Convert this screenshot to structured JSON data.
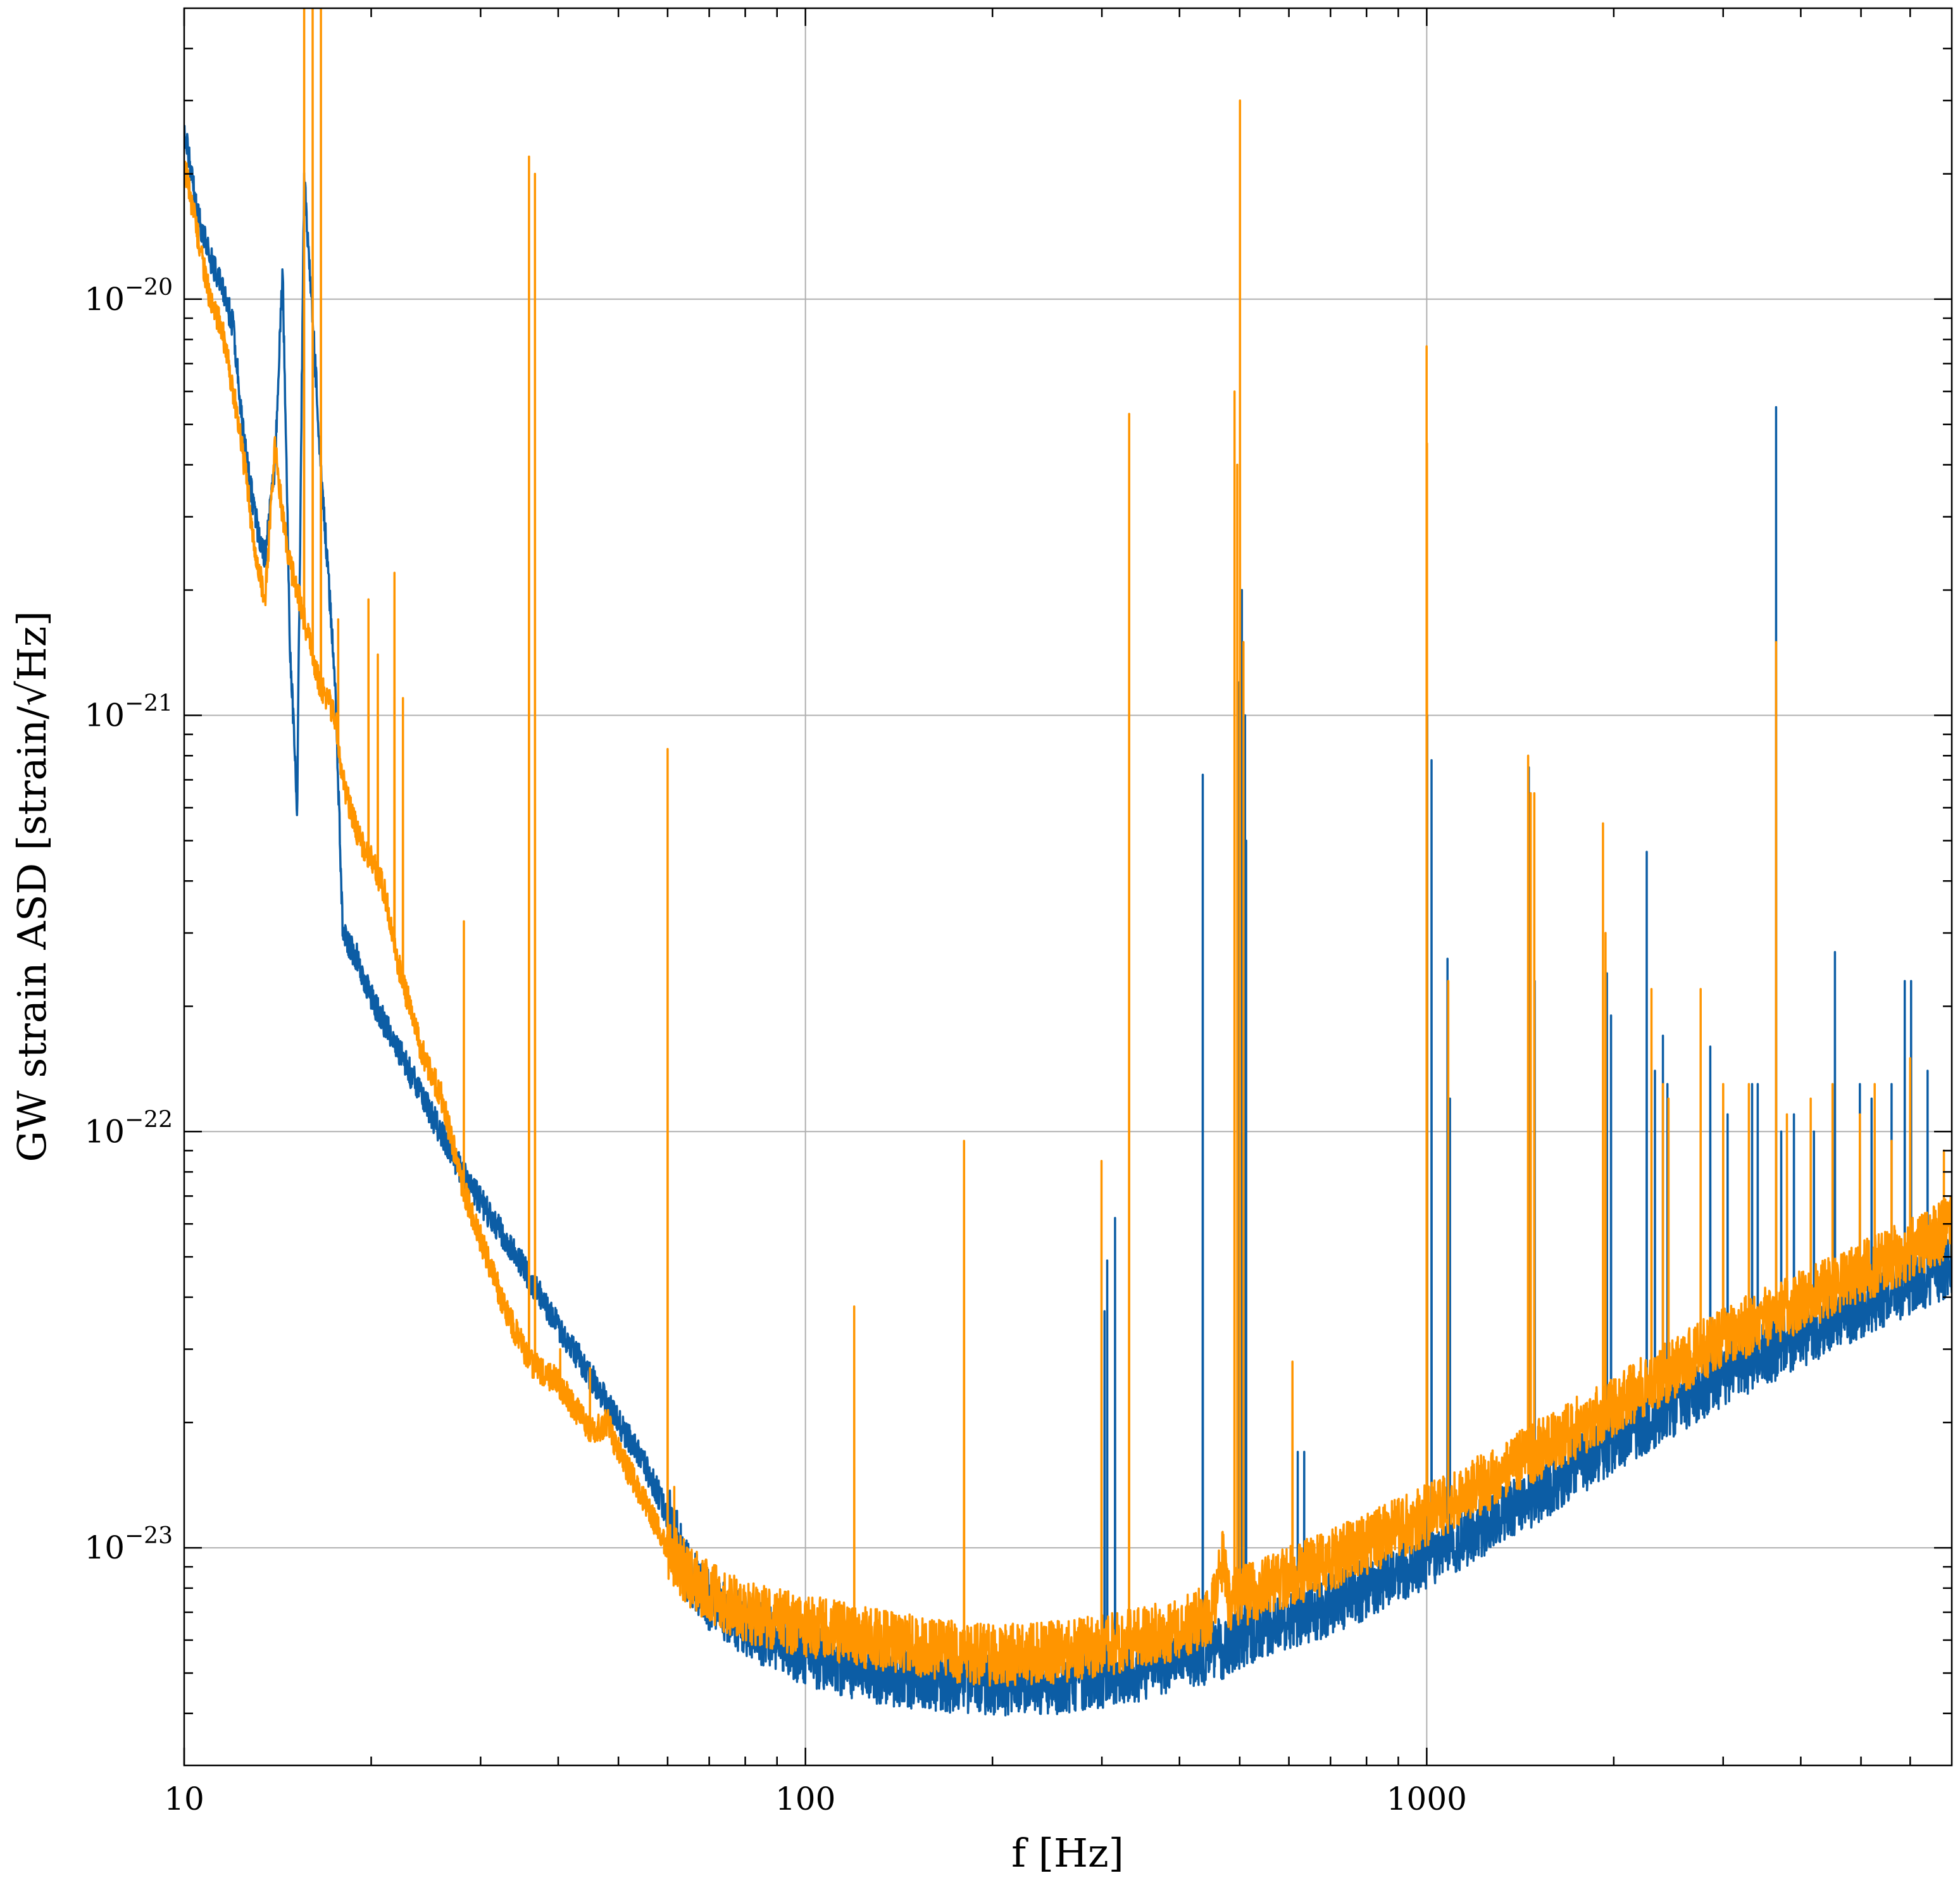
{
  "chart_data": {
    "type": "line",
    "xlabel": "f [Hz]",
    "ylabel": "GW strain ASD [strain/√Hz]",
    "x_scale": "log",
    "y_scale": "log",
    "xlim": [
      10,
      7000
    ],
    "ylim": [
      3e-24,
      5e-20
    ],
    "grid": true,
    "legend": "none",
    "x_ticks": [
      {
        "value": 10,
        "label": "10"
      },
      {
        "value": 100,
        "label": "100"
      },
      {
        "value": 1000,
        "label": "1000"
      }
    ],
    "y_ticks": [
      {
        "value": 1e-20,
        "base": "10",
        "exp": "−20"
      },
      {
        "value": 1e-21,
        "base": "10",
        "exp": "−21"
      },
      {
        "value": 1e-22,
        "base": "10",
        "exp": "−22"
      },
      {
        "value": 1e-23,
        "base": "10",
        "exp": "−23"
      }
    ],
    "series": [
      {
        "color": "#0c5da5",
        "baseline": [
          [
            10,
            2.6e-20
          ],
          [
            10.5,
            1.6e-20
          ],
          [
            11,
            1.25e-20
          ],
          [
            11.5,
            1.1e-20
          ],
          [
            12,
            8.5e-21
          ],
          [
            12.5,
            4.5e-21
          ],
          [
            13,
            3e-21
          ],
          [
            13.5,
            2.4e-21
          ],
          [
            14,
            4e-21
          ],
          [
            14.4,
            1.2e-20
          ],
          [
            14.8,
            1.5e-21
          ],
          [
            15.2,
            6e-22
          ],
          [
            15.6,
            2e-20
          ],
          [
            16.6,
            4e-21
          ],
          [
            17.5,
            1.2e-21
          ],
          [
            18,
            3e-22
          ],
          [
            19,
            2.6e-22
          ],
          [
            20,
            2.1e-22
          ],
          [
            22,
            1.6e-22
          ],
          [
            25,
            1.1e-22
          ],
          [
            28,
            8e-23
          ],
          [
            30,
            6.8e-23
          ],
          [
            35,
            4.8e-23
          ],
          [
            40,
            3.4e-23
          ],
          [
            45,
            2.6e-23
          ],
          [
            50,
            2e-23
          ],
          [
            55,
            1.6e-23
          ],
          [
            60,
            1.2e-23
          ],
          [
            65,
            8.5e-24
          ],
          [
            70,
            7.5e-24
          ],
          [
            80,
            6.5e-24
          ],
          [
            100,
            5.5e-24
          ],
          [
            130,
            5e-24
          ],
          [
            160,
            4.8e-24
          ],
          [
            200,
            4.7e-24
          ],
          [
            250,
            4.7e-24
          ],
          [
            300,
            4.9e-24
          ],
          [
            350,
            5.1e-24
          ],
          [
            400,
            5.4e-24
          ],
          [
            450,
            5.6e-24
          ],
          [
            500,
            6e-24
          ],
          [
            600,
            6.6e-24
          ],
          [
            700,
            7.3e-24
          ],
          [
            800,
            8e-24
          ],
          [
            1000,
            9.5e-24
          ],
          [
            1200,
            1.1e-23
          ],
          [
            1500,
            1.35e-23
          ],
          [
            2000,
            1.8e-23
          ],
          [
            2500,
            2.2e-23
          ],
          [
            3000,
            2.6e-23
          ],
          [
            4000,
            3.2e-23
          ],
          [
            5000,
            3.8e-23
          ],
          [
            6000,
            4.3e-23
          ],
          [
            7000,
            4.8e-23
          ]
        ],
        "lines": [
          [
            180,
            5.8e-24
          ],
          [
            303,
            3.7e-23
          ],
          [
            306,
            4.9e-23
          ],
          [
            315,
            6.2e-23
          ],
          [
            436,
            7.2e-22
          ],
          [
            499,
            1.2e-21
          ],
          [
            504,
            2e-21
          ],
          [
            510,
            1e-21
          ],
          [
            512,
            5e-22
          ],
          [
            620,
            1.7e-23
          ],
          [
            635,
            1.7e-23
          ],
          [
            1000,
            1.5e-21
          ],
          [
            1002,
            1e-21
          ],
          [
            1018,
            7.8e-22
          ],
          [
            1080,
            2.6e-22
          ],
          [
            1090,
            1.2e-22
          ],
          [
            1460,
            7.5e-22
          ],
          [
            1492,
            2.3e-22
          ],
          [
            1950,
            2.4e-22
          ],
          [
            1980,
            1.9e-22
          ],
          [
            2260,
            4.7e-22
          ],
          [
            2330,
            1.4e-22
          ],
          [
            2400,
            1.7e-22
          ],
          [
            2440,
            1.3e-22
          ],
          [
            2860,
            1.6e-22
          ],
          [
            3050,
            1.1e-22
          ],
          [
            3340,
            1.3e-22
          ],
          [
            3410,
            1.3e-22
          ],
          [
            3650,
            5.5e-21
          ],
          [
            3720,
            1e-22
          ],
          [
            3900,
            1.1e-22
          ],
          [
            4200,
            1e-22
          ],
          [
            4540,
            2.7e-22
          ],
          [
            4980,
            1.3e-22
          ],
          [
            5200,
            1.2e-22
          ],
          [
            5600,
            1.3e-22
          ],
          [
            5880,
            2.3e-22
          ],
          [
            6020,
            2.3e-22
          ],
          [
            6400,
            1.4e-22
          ]
        ]
      },
      {
        "color": "#ff9500",
        "baseline": [
          [
            10,
            2.1e-20
          ],
          [
            10.5,
            1.45e-20
          ],
          [
            11,
            1e-20
          ],
          [
            11.5,
            8.5e-21
          ],
          [
            12,
            6e-21
          ],
          [
            12.5,
            4e-21
          ],
          [
            13,
            2.5e-21
          ],
          [
            13.5,
            1.9e-21
          ],
          [
            14,
            4.5e-21
          ],
          [
            14.4,
            3e-21
          ],
          [
            14.8,
            2.3e-21
          ],
          [
            15.2,
            2e-21
          ],
          [
            16.5,
            1.2e-21
          ],
          [
            17.5,
            1e-21
          ],
          [
            18,
            7e-22
          ],
          [
            19,
            5.2e-22
          ],
          [
            20,
            4.5e-22
          ],
          [
            21,
            3.8e-22
          ],
          [
            22,
            2.6e-22
          ],
          [
            24,
            1.6e-22
          ],
          [
            26,
            1.2e-22
          ],
          [
            28,
            7.5e-23
          ],
          [
            30,
            5.5e-23
          ],
          [
            33,
            3.7e-23
          ],
          [
            36,
            2.8e-23
          ],
          [
            40,
            2.5e-23
          ],
          [
            45,
            1.9e-23
          ],
          [
            48,
            2e-23
          ],
          [
            50,
            1.7e-23
          ],
          [
            55,
            1.3e-23
          ],
          [
            60,
            1e-23
          ],
          [
            65,
            8.5e-24
          ],
          [
            70,
            7.8e-24
          ],
          [
            80,
            7e-24
          ],
          [
            100,
            6.5e-24
          ],
          [
            130,
            6e-24
          ],
          [
            160,
            5.7e-24
          ],
          [
            200,
            5.5e-24
          ],
          [
            250,
            5.6e-24
          ],
          [
            300,
            5.8e-24
          ],
          [
            350,
            6.1e-24
          ],
          [
            400,
            6.4e-24
          ],
          [
            450,
            7e-24
          ],
          [
            470,
            9.5e-24
          ],
          [
            480,
            7.5e-24
          ],
          [
            500,
            7.6e-24
          ],
          [
            600,
            8.5e-24
          ],
          [
            700,
            9.3e-24
          ],
          [
            800,
            1.02e-23
          ],
          [
            1000,
            1.2e-23
          ],
          [
            1200,
            1.4e-23
          ],
          [
            1500,
            1.7e-23
          ],
          [
            2000,
            2.2e-23
          ],
          [
            2500,
            2.7e-23
          ],
          [
            3000,
            3.2e-23
          ],
          [
            4000,
            3.9e-23
          ],
          [
            5000,
            4.6e-23
          ],
          [
            6000,
            5.2e-23
          ],
          [
            7000,
            5.9e-23
          ]
        ],
        "lines": [
          [
            15.6,
            5e-20
          ],
          [
            16.1,
            5e-20
          ],
          [
            16.6,
            5e-20
          ],
          [
            17.7,
            1.7e-21
          ],
          [
            19.8,
            1.9e-21
          ],
          [
            20.5,
            1.4e-21
          ],
          [
            21.8,
            2.2e-21
          ],
          [
            22.5,
            1.1e-21
          ],
          [
            28.2,
            3.2e-22
          ],
          [
            35.9,
            2.2e-20
          ],
          [
            36.7,
            2e-20
          ],
          [
            40.3,
            3e-23
          ],
          [
            45,
            2.7e-23
          ],
          [
            60,
            8.3e-22
          ],
          [
            61.5,
            1.4e-23
          ],
          [
            119.8,
            3.8e-23
          ],
          [
            180,
            9.5e-23
          ],
          [
            299.6,
            8.5e-23
          ],
          [
            331.9,
            5.3e-21
          ],
          [
            490.5,
            6e-21
          ],
          [
            495.5,
            4e-21
          ],
          [
            500.5,
            3e-20
          ],
          [
            507,
            1.5e-21
          ],
          [
            608,
            2.8e-23
          ],
          [
            999.5,
            7.7e-21
          ],
          [
            1001,
            4.5e-21
          ],
          [
            1083,
            2.3e-22
          ],
          [
            1456,
            8e-22
          ],
          [
            1470,
            6.5e-22
          ],
          [
            1490,
            6.5e-22
          ],
          [
            1922,
            5.5e-22
          ],
          [
            1940,
            3e-22
          ],
          [
            2300,
            2.2e-22
          ],
          [
            2400,
            1.3e-22
          ],
          [
            2450,
            1.2e-22
          ],
          [
            2760,
            2.2e-22
          ],
          [
            3000,
            1.3e-22
          ],
          [
            3300,
            1.3e-22
          ],
          [
            3650,
            1.5e-21
          ],
          [
            3800,
            1.1e-22
          ],
          [
            4150,
            1.2e-22
          ],
          [
            4500,
            1.3e-22
          ],
          [
            4980,
            1.1e-22
          ],
          [
            5260,
            1.3e-22
          ],
          [
            5600,
            9.5e-23
          ],
          [
            6000,
            1.5e-22
          ],
          [
            6800,
            9e-23
          ]
        ]
      }
    ]
  }
}
